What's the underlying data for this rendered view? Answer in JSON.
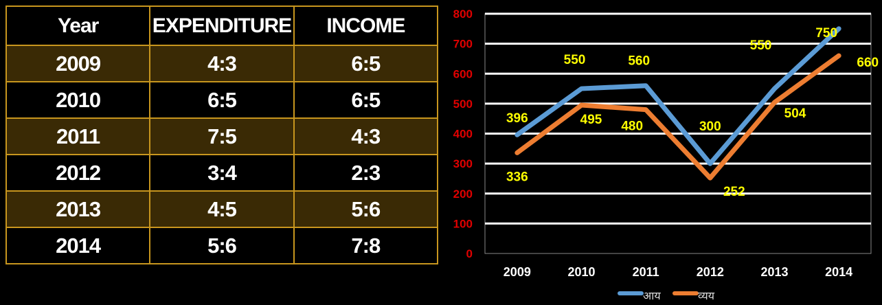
{
  "table": {
    "headers": [
      "Year",
      "EXPENDITURE",
      "INCOME"
    ],
    "rows": [
      {
        "year": "2009",
        "expenditure": "4:3",
        "income": "6:5"
      },
      {
        "year": "2010",
        "expenditure": "6:5",
        "income": "6:5"
      },
      {
        "year": "2011",
        "expenditure": "7:5",
        "income": "4:3"
      },
      {
        "year": "2012",
        "expenditure": "3:4",
        "income": "2:3"
      },
      {
        "year": "2013",
        "expenditure": "4:5",
        "income": "5:6"
      },
      {
        "year": "2014",
        "expenditure": "5:6",
        "income": "7:8"
      }
    ]
  },
  "chart_data": {
    "type": "line",
    "categories": [
      "2009",
      "2010",
      "2011",
      "2012",
      "2013",
      "2014"
    ],
    "ylim": [
      0,
      800
    ],
    "yticks": [
      "0",
      "100",
      "200",
      "300",
      "400",
      "500",
      "600",
      "700",
      "800"
    ],
    "grid": true,
    "legend_position": "bottom",
    "title": "",
    "xlabel": "",
    "ylabel": "",
    "series": [
      {
        "name": "आय",
        "values": [
          396,
          550,
          560,
          300,
          550,
          750
        ],
        "labels": [
          "396",
          "550",
          "560",
          "300",
          "550",
          "750"
        ],
        "color": "#5b9bd5"
      },
      {
        "name": "व्यय",
        "values": [
          336,
          495,
          480,
          252,
          504,
          660
        ],
        "labels": [
          "336",
          "495",
          "480",
          "252",
          "504",
          "660"
        ],
        "color": "#ed7d31"
      }
    ],
    "colors": {
      "ytick": "#e00000",
      "xtick": "#ffffff",
      "data_label": "#ffff00",
      "grid": "#ffffff"
    }
  }
}
